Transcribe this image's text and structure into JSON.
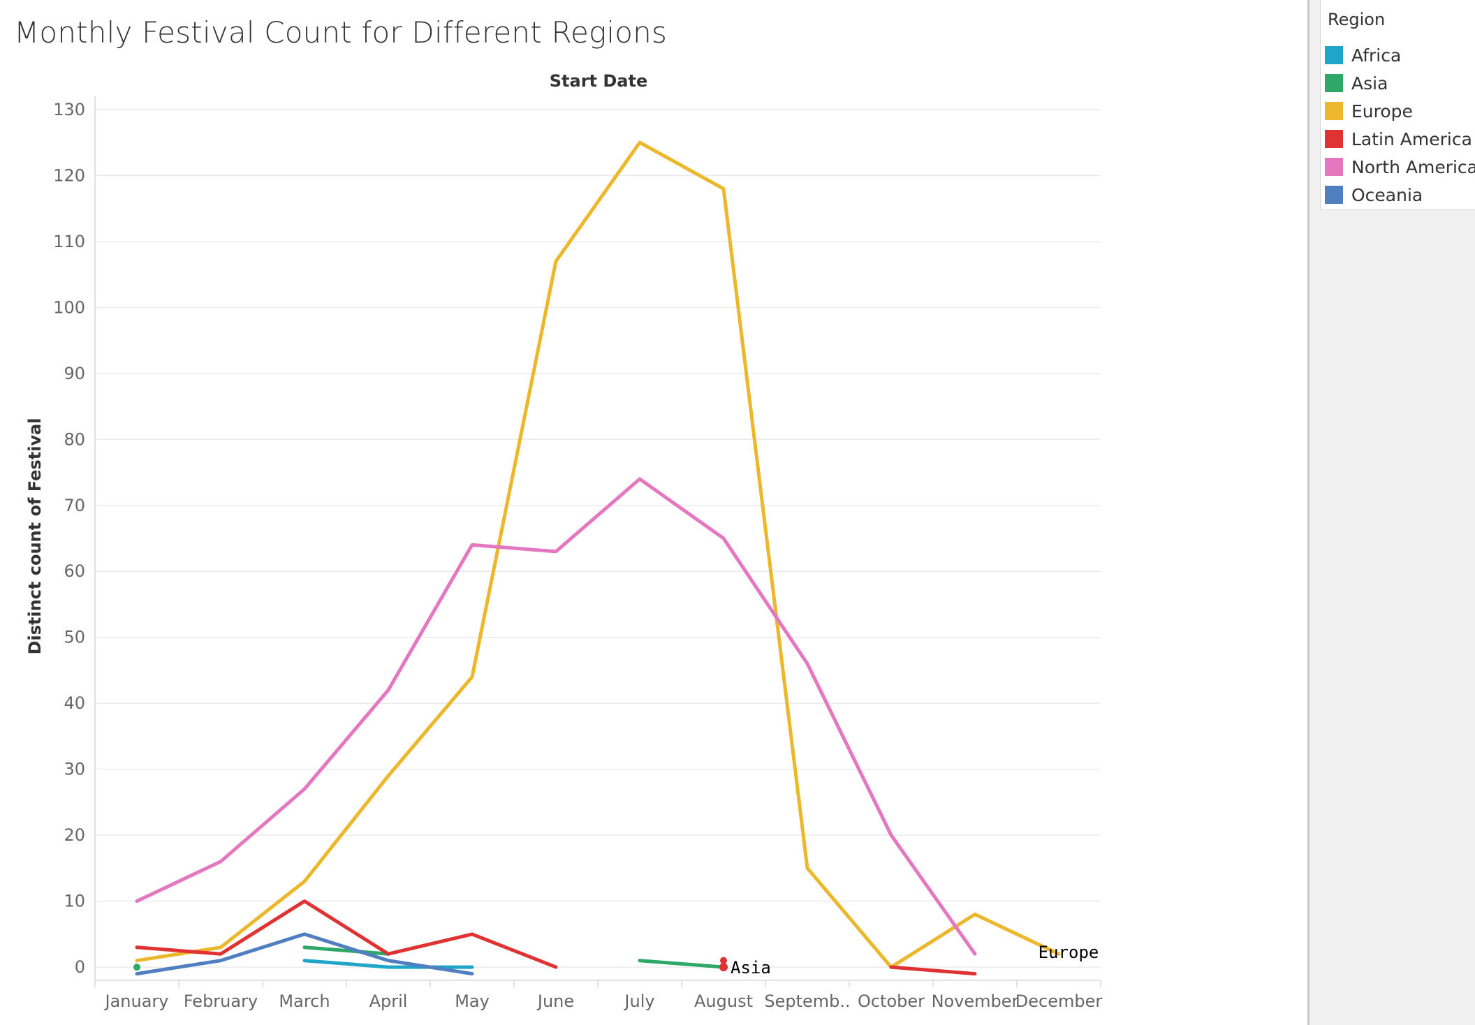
{
  "title": "Monthly Festival Count for Different Regions",
  "chart_data": {
    "type": "line",
    "top_axis_label": "Start Date",
    "ylabel": "Distinct count of Festival",
    "ylim": [
      -2,
      132
    ],
    "yticks": [
      0,
      10,
      20,
      30,
      40,
      50,
      60,
      70,
      80,
      90,
      100,
      110,
      120,
      130
    ],
    "categories": [
      "January",
      "February",
      "March",
      "April",
      "May",
      "June",
      "July",
      "August",
      "Septemb..",
      "October",
      "November",
      "December"
    ],
    "grid": true,
    "legend_position": "right",
    "series": [
      {
        "name": "Africa",
        "color": "#1fa5c8",
        "values": [
          null,
          null,
          1,
          0,
          0,
          null,
          null,
          null,
          null,
          null,
          null,
          null
        ]
      },
      {
        "name": "Asia",
        "color": "#2ea866",
        "values": [
          0,
          null,
          3,
          2,
          null,
          null,
          1,
          0,
          null,
          null,
          null,
          null
        ]
      },
      {
        "name": "Europe",
        "color": "#ecb72a",
        "values": [
          1,
          3,
          13,
          29,
          44,
          107,
          125,
          118,
          15,
          0,
          8,
          2
        ]
      },
      {
        "name": "Latin America",
        "color": "#e03232",
        "values": [
          3,
          2,
          10,
          2,
          5,
          0,
          null,
          1,
          null,
          0,
          -1,
          null
        ]
      },
      {
        "name": "North America",
        "color": "#e477bf",
        "values": [
          10,
          16,
          27,
          42,
          64,
          63,
          74,
          65,
          46,
          20,
          2,
          null
        ]
      },
      {
        "name": "Oceania",
        "color": "#4f7ec1",
        "values": [
          -1,
          1,
          5,
          1,
          -1,
          null,
          null,
          null,
          null,
          null,
          null,
          null
        ]
      }
    ],
    "annotations": [
      {
        "text": "Asia",
        "category": "August",
        "value": 0,
        "dot_color": "#e03232"
      },
      {
        "text": "Europe",
        "category": "December",
        "value": 2
      }
    ]
  },
  "legend": {
    "title": "Region",
    "items": [
      {
        "label": "Africa",
        "color": "#1fa5c8"
      },
      {
        "label": "Asia",
        "color": "#2ea866"
      },
      {
        "label": "Europe",
        "color": "#ecb72a"
      },
      {
        "label": "Latin America",
        "color": "#e03232"
      },
      {
        "label": "North America",
        "color": "#e477bf"
      },
      {
        "label": "Oceania",
        "color": "#4f7ec1"
      }
    ]
  }
}
